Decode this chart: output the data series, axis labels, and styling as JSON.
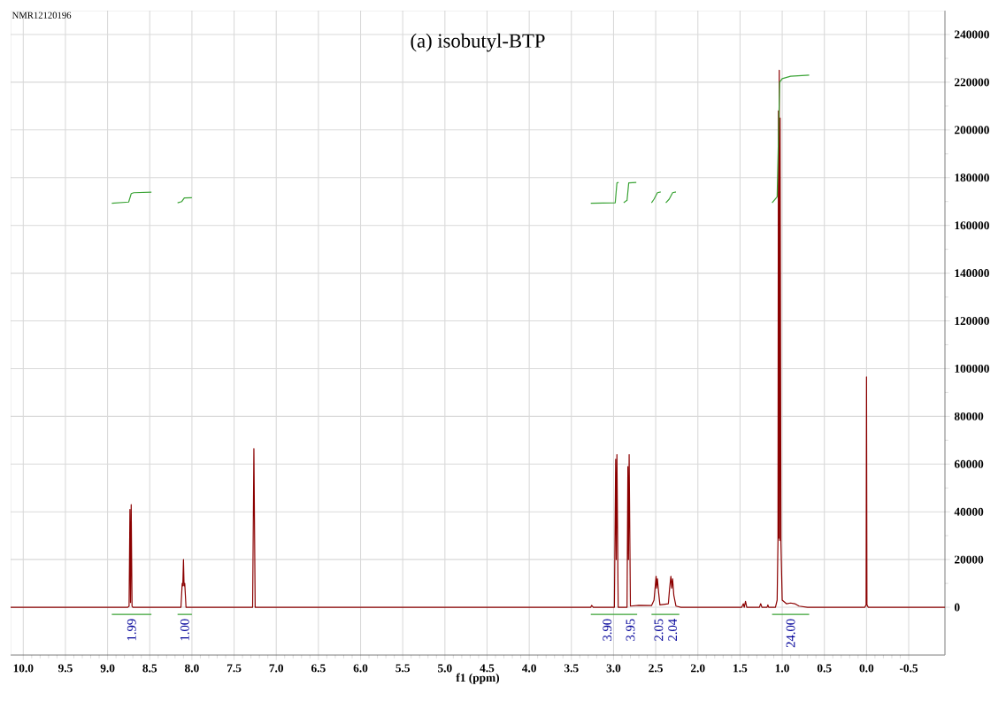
{
  "chart_data": {
    "type": "line",
    "title": "(a) isobutyl-BTP",
    "xlabel": "f1 (ppm)",
    "xlim": [
      10.15,
      -0.93
    ],
    "ylim": [
      -20000,
      250000
    ],
    "xticks": [
      {
        "value": 10,
        "label": "10.0"
      },
      {
        "value": 9.5,
        "label": "9.5"
      },
      {
        "value": 9,
        "label": "9.0"
      },
      {
        "value": 8.5,
        "label": "8.5"
      },
      {
        "value": 8,
        "label": "8.0"
      },
      {
        "value": 7.5,
        "label": "7.5"
      },
      {
        "value": 7,
        "label": "7.0"
      },
      {
        "value": 6.5,
        "label": "6.5"
      },
      {
        "value": 6,
        "label": "6.0"
      },
      {
        "value": 5.5,
        "label": "5.5"
      },
      {
        "value": 5,
        "label": "5.0"
      },
      {
        "value": 4.5,
        "label": "4.5"
      },
      {
        "value": 4,
        "label": "4.0"
      },
      {
        "value": 3.5,
        "label": "3.5"
      },
      {
        "value": 3,
        "label": "3.0"
      },
      {
        "value": 2.5,
        "label": "2.5"
      },
      {
        "value": 2,
        "label": "2.0"
      },
      {
        "value": 1.5,
        "label": "1.5"
      },
      {
        "value": 1,
        "label": "1.0"
      },
      {
        "value": 0.5,
        "label": "0.5"
      },
      {
        "value": 0,
        "label": "0.0"
      },
      {
        "value": -0.5,
        "label": "-0.5"
      }
    ],
    "yticks": [
      0,
      20000,
      40000,
      60000,
      80000,
      100000,
      120000,
      140000,
      160000,
      180000,
      200000,
      220000,
      240000
    ],
    "grid": true,
    "annotations": [
      "NMR12120196",
      "1.99",
      "1.00",
      "3.90",
      "3.95",
      "2.05",
      "2.04",
      "24.00"
    ],
    "series": [
      {
        "color": "#8b0000",
        "x": [
          10.15,
          8.76,
          8.745,
          8.735,
          8.728,
          8.72,
          8.71,
          8.7,
          8.13,
          8.115,
          8.108,
          8.1,
          8.093,
          8.085,
          8.07,
          7.28,
          7.265,
          7.25,
          3.27,
          3.26,
          3.24,
          2.99,
          2.975,
          2.968,
          2.96,
          2.945,
          2.84,
          2.83,
          2.823,
          2.815,
          2.8,
          2.7,
          2.55,
          2.52,
          2.505,
          2.495,
          2.49,
          2.48,
          2.465,
          2.45,
          2.35,
          2.335,
          2.32,
          2.31,
          2.3,
          2.285,
          2.26,
          2.2,
          1.48,
          1.46,
          1.45,
          1.435,
          1.42,
          1.27,
          1.255,
          1.24,
          1.18,
          1.17,
          1.16,
          1.08,
          1.06,
          1.05,
          1.045,
          1.04,
          1.035,
          1.03,
          1.025,
          1.015,
          1.0,
          0.95,
          0.9,
          0.85,
          0.8,
          0.7,
          0.02,
          0.005,
          0.0,
          -0.005,
          -0.02,
          -0.93
        ],
        "values": [
          0,
          0,
          500,
          41000,
          2000,
          43000,
          500,
          0,
          0,
          10000,
          9000,
          20000,
          9000,
          10000,
          0,
          0,
          66500,
          0,
          0,
          800,
          0,
          0,
          62000,
          20000,
          64000,
          0,
          0,
          59000,
          20000,
          64000,
          500,
          800,
          700,
          3000,
          9000,
          13000,
          8000,
          12000,
          6000,
          1000,
          1500,
          8000,
          13000,
          8000,
          12000,
          5000,
          500,
          0,
          0,
          1500,
          0,
          2500,
          0,
          0,
          1500,
          0,
          0,
          1000,
          0,
          0,
          3000,
          28000,
          208000,
          29000,
          225000,
          28000,
          205000,
          27000,
          3000,
          1500,
          1800,
          1500,
          500,
          0,
          0,
          1000,
          96500,
          1000,
          0,
          0
        ]
      },
      {
        "color": "#3aa335",
        "x": [
          8.95,
          8.75,
          8.72,
          8.69,
          8.48,
          null,
          8.17,
          8.12,
          8.09,
          8.0,
          null,
          3.27,
          2.98,
          2.96,
          2.94,
          null,
          2.88,
          2.84,
          2.82,
          2.73,
          null,
          2.55,
          2.52,
          2.48,
          2.44,
          null,
          2.38,
          2.34,
          2.3,
          2.26,
          null,
          1.12,
          1.06,
          1.03,
          1.0,
          0.9,
          0.68
        ],
        "values": [
          169300,
          169800,
          173300,
          173700,
          173900,
          null,
          169500,
          170000,
          171500,
          171600,
          null,
          169300,
          169500,
          177800,
          178000,
          null,
          169500,
          170500,
          177800,
          178000,
          null,
          169500,
          171000,
          173700,
          174000,
          null,
          169500,
          171000,
          173700,
          174000,
          null,
          169500,
          172000,
          220000,
          221500,
          222500,
          223000
        ]
      },
      {
        "color": "#3aa335",
        "x": [
          8.95,
          8.48,
          null,
          8.17,
          8.0,
          null,
          3.27,
          2.88,
          null,
          2.88,
          2.72,
          null,
          2.55,
          2.38,
          null,
          2.38,
          2.22,
          null,
          1.12,
          0.68
        ],
        "values": [
          -3000,
          -3000,
          null,
          -3000,
          -3000,
          null,
          -3000,
          -3000,
          null,
          -3000,
          -3000,
          null,
          -3000,
          -3000,
          null,
          -3000,
          -3000,
          null,
          -3000,
          -3000
        ]
      }
    ]
  }
}
